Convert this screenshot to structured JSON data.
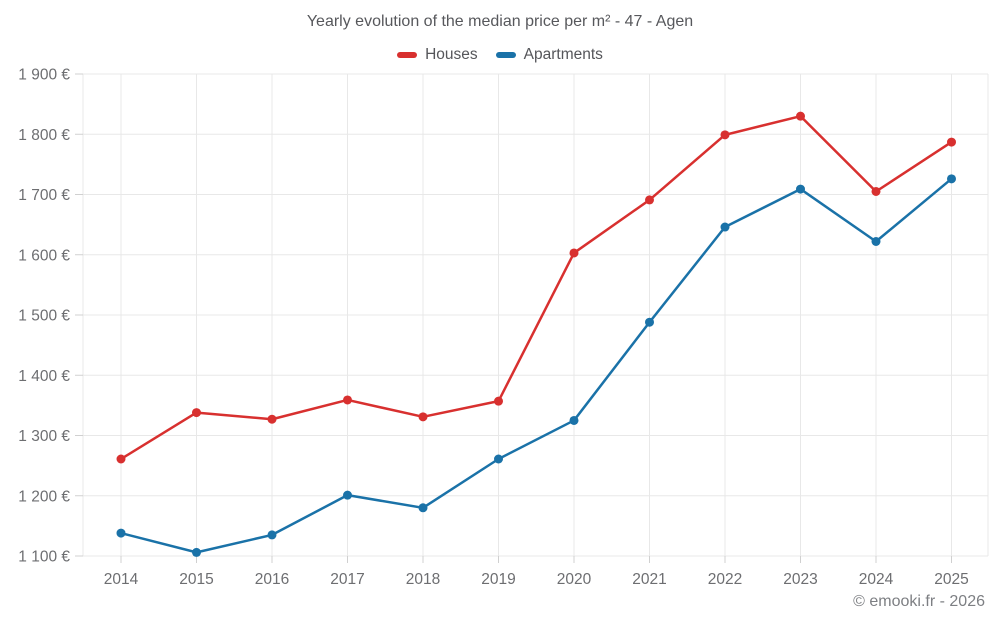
{
  "footer": {
    "credit": "© emooki.fr - 2026"
  },
  "chart_data": {
    "type": "line",
    "title": "Yearly evolution of the median price per m² - 47 - Agen",
    "categories": [
      "2014",
      "2015",
      "2016",
      "2017",
      "2018",
      "2019",
      "2020",
      "2021",
      "2022",
      "2023",
      "2024",
      "2025"
    ],
    "series": [
      {
        "name": "Houses",
        "color": "#d8302f",
        "marker": "circle",
        "values": [
          1261,
          1338,
          1327,
          1359,
          1331,
          1357,
          1603,
          1691,
          1799,
          1830,
          1705,
          1787
        ]
      },
      {
        "name": "Apartments",
        "color": "#1a72a8",
        "marker": "circle",
        "values": [
          1138,
          1106,
          1135,
          1201,
          1180,
          1261,
          1325,
          1488,
          1646,
          1709,
          1622,
          1726
        ]
      }
    ],
    "xlabel": "",
    "ylabel": "",
    "unit": "€",
    "ylim": [
      1100,
      1900
    ],
    "yticks": [
      1100,
      1200,
      1300,
      1400,
      1500,
      1600,
      1700,
      1800,
      1900
    ],
    "ytick_labels": [
      "1 100 €",
      "1 200 €",
      "1 300 €",
      "1 400 €",
      "1 500 €",
      "1 600 €",
      "1 700 €",
      "1 800 €",
      "1 900 €"
    ],
    "grid": true,
    "legend_position": "top"
  }
}
